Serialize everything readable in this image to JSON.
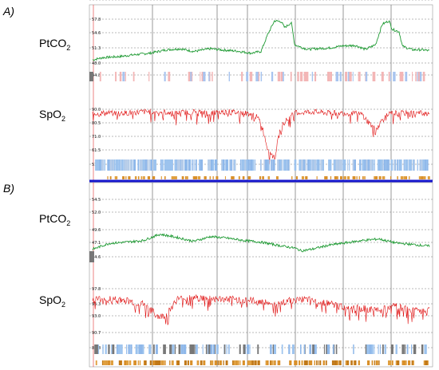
{
  "panels": [
    {
      "id": "A",
      "label": "A)"
    },
    {
      "id": "B",
      "label": "B)"
    }
  ],
  "chart_data": [
    {
      "type": "line",
      "panel": "A",
      "title": "",
      "xlabel": "",
      "ylabel": "PtCO2",
      "y_ticks": [
        "57.8",
        "54.6",
        "51.3",
        "48.0",
        "44.8"
      ],
      "ylim": [
        43.5,
        58.5
      ],
      "grid": true,
      "series": [
        {
          "x": [
            0,
            0.03,
            0.08,
            0.12,
            0.17,
            0.22,
            0.26,
            0.3,
            0.35,
            0.39,
            0.43,
            0.47,
            0.5,
            0.52,
            0.54,
            0.56,
            0.57,
            0.59,
            0.6,
            0.62,
            0.64,
            0.66,
            0.7,
            0.74,
            0.78,
            0.81,
            0.84,
            0.86,
            0.88,
            0.89,
            0.91,
            0.92,
            0.95,
            0.98,
            1.0
          ],
          "y": [
            46.5,
            47.2,
            47.5,
            48.0,
            48.5,
            49.5,
            49.8,
            49.0,
            49.8,
            49.4,
            49.1,
            48.5,
            49.0,
            54.0,
            58.0,
            57.8,
            56.0,
            57.5,
            51.0,
            50.2,
            49.6,
            49.8,
            50.0,
            50.6,
            50.8,
            49.6,
            51.0,
            57.0,
            58.0,
            55.5,
            54.8,
            50.5,
            49.5,
            49.5,
            49.2
          ]
        }
      ]
    },
    {
      "type": "line",
      "panel": "A",
      "title": "",
      "xlabel": "",
      "ylabel": "SpO2",
      "y_ticks": [
        "90.0",
        "80.5",
        "71.0",
        "61.5",
        "51.7"
      ],
      "ylim": [
        49.0,
        92.5
      ],
      "grid": true,
      "series": [
        {
          "x": [
            0,
            0.05,
            0.1,
            0.15,
            0.2,
            0.25,
            0.3,
            0.35,
            0.4,
            0.45,
            0.48,
            0.5,
            0.52,
            0.54,
            0.56,
            0.6,
            0.65,
            0.7,
            0.75,
            0.8,
            0.82,
            0.84,
            0.86,
            0.88,
            0.9,
            0.95,
            1.0
          ],
          "y": [
            89,
            89,
            89,
            90,
            90,
            89,
            90,
            89,
            90,
            89,
            88,
            82,
            62,
            55,
            80,
            89,
            90,
            89,
            89,
            88,
            82,
            76,
            84,
            88,
            89,
            89,
            89
          ]
        }
      ]
    },
    {
      "type": "line",
      "panel": "B",
      "title": "",
      "xlabel": "",
      "ylabel": "PtCO2",
      "y_ticks": [
        "54.5",
        "52.0",
        "49.6",
        "47.1",
        "44.6",
        "40.8"
      ],
      "ylim": [
        39.5,
        56.0
      ],
      "grid": true,
      "series": [
        {
          "x": [
            0,
            0.05,
            0.1,
            0.15,
            0.2,
            0.25,
            0.3,
            0.35,
            0.4,
            0.45,
            0.5,
            0.55,
            0.6,
            0.62,
            0.65,
            0.7,
            0.75,
            0.8,
            0.85,
            0.9,
            0.95,
            1.0
          ],
          "y": [
            42.0,
            43.5,
            43.8,
            44.2,
            45.8,
            45.0,
            44.0,
            45.2,
            44.8,
            44.2,
            43.8,
            43.0,
            42.3,
            41.6,
            42.0,
            43.0,
            43.6,
            44.2,
            44.6,
            43.6,
            43.2,
            42.8
          ]
        }
      ]
    },
    {
      "type": "line",
      "panel": "B",
      "title": "",
      "xlabel": "",
      "ylabel": "SpO2",
      "y_ticks": [
        "97.8",
        "95.3",
        "93.0",
        "90.7",
        "88.8"
      ],
      "ylim": [
        87.5,
        99.0
      ],
      "grid": true,
      "series": [
        {
          "x": [
            0,
            0.05,
            0.1,
            0.15,
            0.18,
            0.2,
            0.22,
            0.25,
            0.3,
            0.35,
            0.4,
            0.45,
            0.5,
            0.55,
            0.6,
            0.65,
            0.7,
            0.75,
            0.8,
            0.85,
            0.9,
            0.95,
            1.0
          ],
          "y": [
            96.2,
            96.0,
            95.8,
            95.0,
            93.5,
            92.5,
            93.0,
            96.0,
            96.3,
            96.1,
            96.0,
            95.9,
            95.5,
            95.0,
            96.0,
            95.8,
            95.2,
            94.5,
            94.2,
            93.8,
            94.6,
            93.8,
            94.0
          ]
        }
      ]
    }
  ]
}
